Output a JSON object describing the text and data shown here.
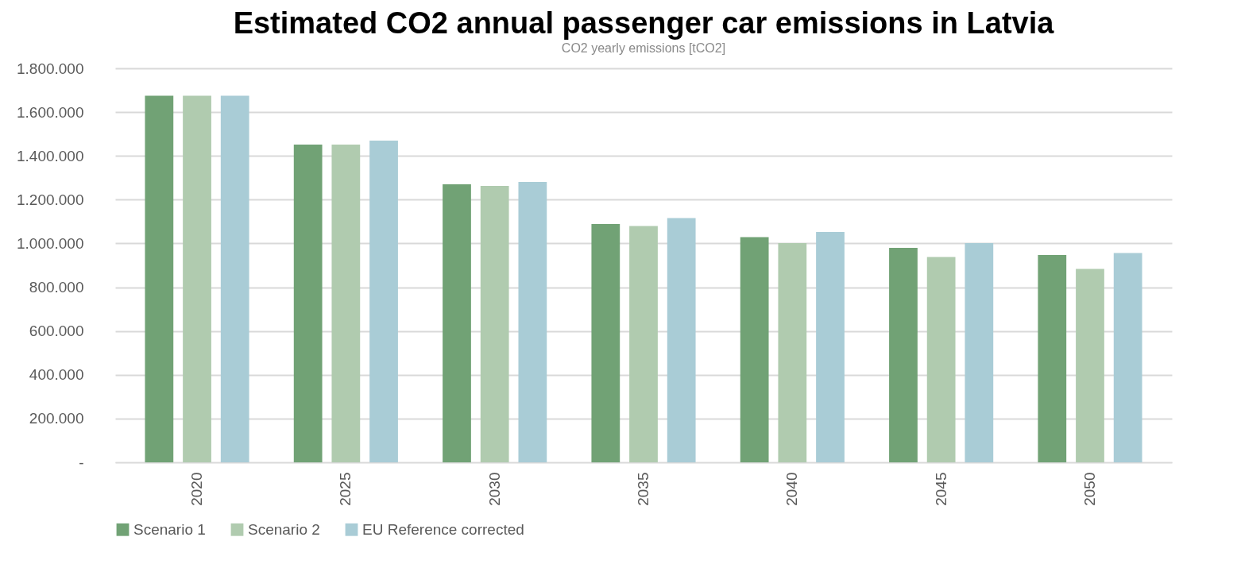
{
  "chart_data": {
    "type": "bar",
    "title": "Estimated CO2 annual passenger car emissions in Latvia",
    "subtitle": "CO2 yearly emissions [tCO2]",
    "categories": [
      "2020",
      "2025",
      "2030",
      "2035",
      "2040",
      "2045",
      "2050"
    ],
    "series": [
      {
        "name": "Scenario 1",
        "color": "#71a275",
        "values": [
          1675000,
          1452000,
          1270000,
          1089000,
          1029000,
          980000,
          947000
        ]
      },
      {
        "name": "Scenario 2",
        "color": "#b0cbaf",
        "values": [
          1675000,
          1452000,
          1263000,
          1080000,
          1002000,
          938000,
          884000
        ]
      },
      {
        "name": "EU Reference corrected",
        "color": "#a9ccd6",
        "values": [
          1675000,
          1470000,
          1281000,
          1116000,
          1052000,
          1002000,
          956000
        ]
      }
    ],
    "ylim": [
      0,
      1800000
    ],
    "yticks": [
      {
        "value": 0,
        "label": "-"
      },
      {
        "value": 200000,
        "label": "200.000"
      },
      {
        "value": 400000,
        "label": "400.000"
      },
      {
        "value": 600000,
        "label": "600.000"
      },
      {
        "value": 800000,
        "label": "800.000"
      },
      {
        "value": 1000000,
        "label": "1.000.000"
      },
      {
        "value": 1200000,
        "label": "1.200.000"
      },
      {
        "value": 1400000,
        "label": "1.400.000"
      },
      {
        "value": 1600000,
        "label": "1.600.000"
      },
      {
        "value": 1800000,
        "label": "1.800.000"
      }
    ],
    "grid": "y",
    "legend": "bottom"
  }
}
